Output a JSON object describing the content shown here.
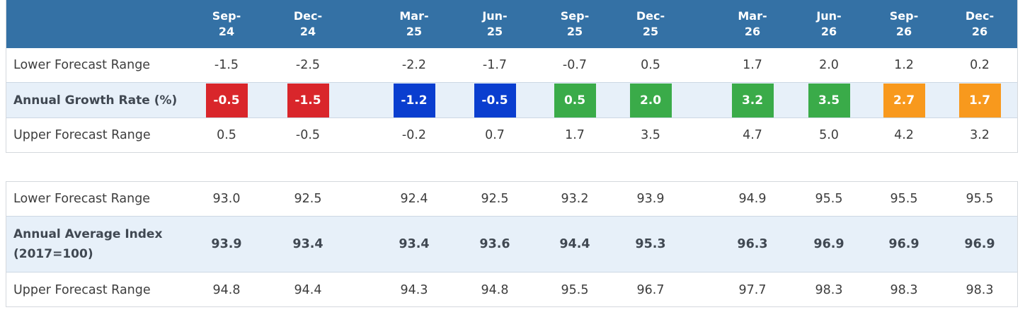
{
  "colors": {
    "header": "#3471a5",
    "red": "#d9262b",
    "blue": "#0a3ecf",
    "green": "#3aab49",
    "orange": "#f8991d"
  },
  "periods": [
    {
      "line1": "Sep-",
      "line2": "24"
    },
    {
      "line1": "Dec-",
      "line2": "24"
    },
    {
      "line1": "Mar-",
      "line2": "25"
    },
    {
      "line1": "Jun-",
      "line2": "25"
    },
    {
      "line1": "Sep-",
      "line2": "25"
    },
    {
      "line1": "Dec-",
      "line2": "25"
    },
    {
      "line1": "Mar-",
      "line2": "26"
    },
    {
      "line1": "Jun-",
      "line2": "26"
    },
    {
      "line1": "Sep-",
      "line2": "26"
    },
    {
      "line1": "Dec-",
      "line2": "26"
    }
  ],
  "growth": {
    "lower_label": "Lower Forecast Range",
    "lower": [
      "-1.5",
      "-2.5",
      "-2.2",
      "-1.7",
      "-0.7",
      "0.5",
      "1.7",
      "2.0",
      "1.2",
      "0.2"
    ],
    "rate_label": "Annual Growth Rate (%)",
    "rate": [
      "-0.5",
      "-1.5",
      "-1.2",
      "-0.5",
      "0.5",
      "2.0",
      "3.2",
      "3.5",
      "2.7",
      "1.7"
    ],
    "rate_colors": [
      "red",
      "red",
      "blue",
      "blue",
      "green",
      "green",
      "green",
      "green",
      "orange",
      "orange"
    ],
    "upper_label": "Upper Forecast Range",
    "upper": [
      "0.5",
      "-0.5",
      "-0.2",
      "0.7",
      "1.7",
      "3.5",
      "4.7",
      "5.0",
      "4.2",
      "3.2"
    ]
  },
  "index": {
    "lower_label": "Lower Forecast Range",
    "lower": [
      "93.0",
      "92.5",
      "92.4",
      "92.5",
      "93.2",
      "93.9",
      "94.9",
      "95.5",
      "95.5",
      "95.5"
    ],
    "avg_label_line1": "Annual Average Index",
    "avg_label_line2": "(2017=100)",
    "avg": [
      "93.9",
      "93.4",
      "93.4",
      "93.6",
      "94.4",
      "95.3",
      "96.3",
      "96.9",
      "96.9",
      "96.9"
    ],
    "upper_label": "Upper Forecast Range",
    "upper": [
      "94.8",
      "94.4",
      "94.3",
      "94.8",
      "95.5",
      "96.7",
      "97.7",
      "98.3",
      "98.3",
      "98.3"
    ]
  },
  "chart_data": {
    "type": "table",
    "columns": [
      "Sep-24",
      "Dec-24",
      "Mar-25",
      "Jun-25",
      "Sep-25",
      "Dec-25",
      "Mar-26",
      "Jun-26",
      "Sep-26",
      "Dec-26"
    ],
    "rows": [
      {
        "name": "Lower Forecast Range",
        "values": [
          -1.5,
          -2.5,
          -2.2,
          -1.7,
          -0.7,
          0.5,
          1.7,
          2.0,
          1.2,
          0.2
        ]
      },
      {
        "name": "Annual Growth Rate (%)",
        "values": [
          -0.5,
          -1.5,
          -1.2,
          -0.5,
          0.5,
          2.0,
          3.2,
          3.5,
          2.7,
          1.7
        ]
      },
      {
        "name": "Upper Forecast Range",
        "values": [
          0.5,
          -0.5,
          -0.2,
          0.7,
          1.7,
          3.5,
          4.7,
          5.0,
          4.2,
          3.2
        ]
      },
      {
        "name": "Lower Forecast Range",
        "values": [
          93.0,
          92.5,
          92.4,
          92.5,
          93.2,
          93.9,
          94.9,
          95.5,
          95.5,
          95.5
        ]
      },
      {
        "name": "Annual Average Index (2017=100)",
        "values": [
          93.9,
          93.4,
          93.4,
          93.6,
          94.4,
          95.3,
          96.3,
          96.9,
          96.9,
          96.9
        ]
      },
      {
        "name": "Upper Forecast Range",
        "values": [
          94.8,
          94.4,
          94.3,
          94.8,
          95.5,
          96.7,
          97.7,
          98.3,
          98.3,
          98.3
        ]
      }
    ]
  }
}
